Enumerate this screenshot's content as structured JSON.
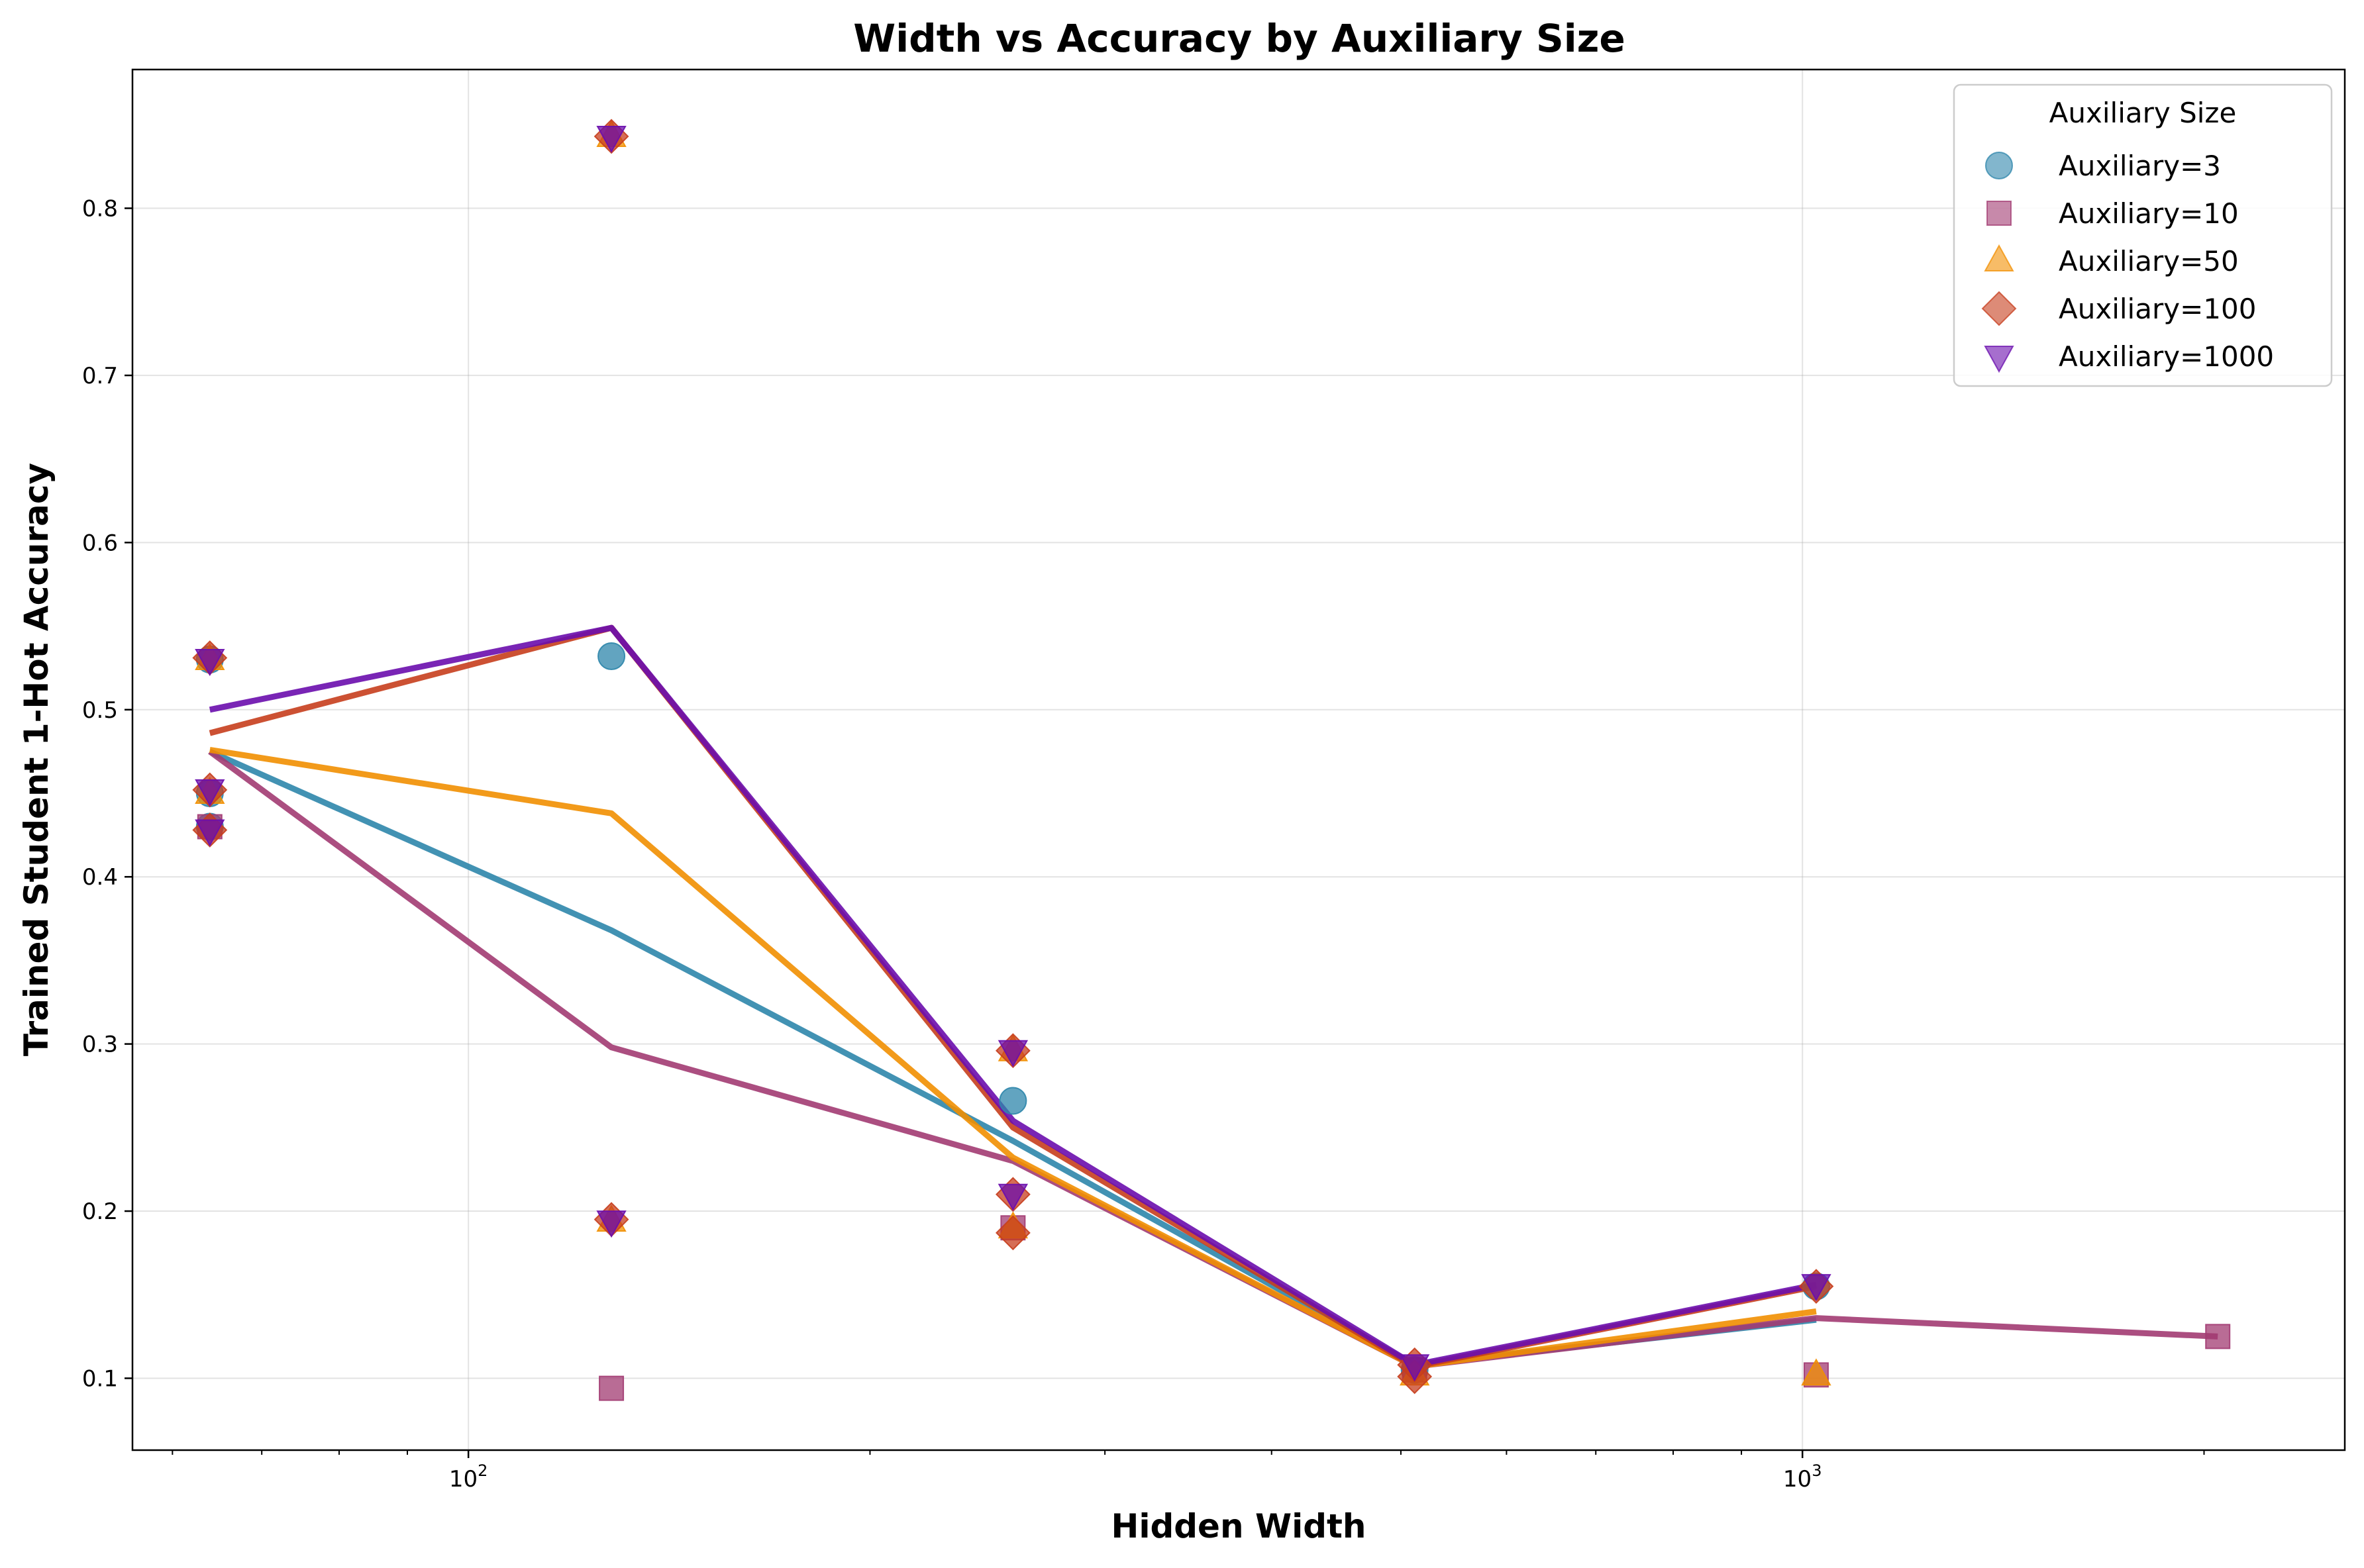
{
  "chart_data": {
    "type": "scatter",
    "title": "Width vs Accuracy by Auxiliary Size",
    "xlabel": "Hidden Width",
    "ylabel": "Trained Student 1-Hot Accuracy",
    "xscale": "log",
    "xlim": [
      56,
      2550
    ],
    "ylim": [
      0.057,
      0.883
    ],
    "grid": true,
    "xticks": [
      {
        "value": 100,
        "label": "10",
        "exp": "2"
      },
      {
        "value": 1000,
        "label": "10",
        "exp": "3"
      }
    ],
    "yticks": [
      0.1,
      0.2,
      0.3,
      0.4,
      0.5,
      0.6,
      0.7,
      0.8
    ],
    "legend": {
      "title": "Auxiliary Size",
      "placement": "top-right"
    },
    "series": [
      {
        "name": "Auxiliary=3",
        "marker": "circle",
        "color": "#2E86AB",
        "points": [
          [
            64,
            0.45
          ],
          [
            64,
            0.43
          ],
          [
            64,
            0.53
          ],
          [
            128,
            0.532
          ],
          [
            256,
            0.266
          ],
          [
            512,
            0.105
          ],
          [
            1024,
            0.155
          ]
        ],
        "line": [
          [
            64,
            0.475
          ],
          [
            128,
            0.368
          ],
          [
            256,
            0.242
          ],
          [
            512,
            0.108
          ],
          [
            1024,
            0.135
          ]
        ]
      },
      {
        "name": "Auxiliary=10",
        "marker": "square",
        "color": "#A23B72",
        "points": [
          [
            64,
            0.43
          ],
          [
            128,
            0.094
          ],
          [
            256,
            0.19
          ],
          [
            512,
            0.105
          ],
          [
            1024,
            0.102
          ],
          [
            2048,
            0.125
          ]
        ],
        "line": [
          [
            64,
            0.475
          ],
          [
            128,
            0.298
          ],
          [
            256,
            0.23
          ],
          [
            512,
            0.107
          ],
          [
            1024,
            0.136
          ],
          [
            2048,
            0.125
          ]
        ]
      },
      {
        "name": "Auxiliary=50",
        "marker": "triangle-up",
        "color": "#F18F01",
        "points": [
          [
            64,
            0.53
          ],
          [
            64,
            0.45
          ],
          [
            128,
            0.843
          ],
          [
            128,
            0.194
          ],
          [
            256,
            0.296
          ],
          [
            256,
            0.19
          ],
          [
            512,
            0.102
          ],
          [
            1024,
            0.102
          ]
        ],
        "line": [
          [
            64,
            0.476
          ],
          [
            128,
            0.438
          ],
          [
            256,
            0.232
          ],
          [
            512,
            0.107
          ],
          [
            1024,
            0.14
          ]
        ]
      },
      {
        "name": "Auxiliary=100",
        "marker": "diamond",
        "color": "#C73E1D",
        "points": [
          [
            64,
            0.531
          ],
          [
            64,
            0.452
          ],
          [
            64,
            0.428
          ],
          [
            128,
            0.843
          ],
          [
            128,
            0.195
          ],
          [
            256,
            0.296
          ],
          [
            256,
            0.21
          ],
          [
            256,
            0.187
          ],
          [
            512,
            0.108
          ],
          [
            512,
            0.101
          ],
          [
            1024,
            0.155
          ]
        ],
        "line": [
          [
            64,
            0.486
          ],
          [
            128,
            0.549
          ],
          [
            256,
            0.25
          ],
          [
            512,
            0.107
          ],
          [
            1024,
            0.155
          ]
        ]
      },
      {
        "name": "Auxiliary=1000",
        "marker": "triangle-down",
        "color": "#6A0DAD",
        "points": [
          [
            64,
            0.53
          ],
          [
            64,
            0.452
          ],
          [
            64,
            0.428
          ],
          [
            128,
            0.843
          ],
          [
            128,
            0.194
          ],
          [
            256,
            0.296
          ],
          [
            256,
            0.21
          ],
          [
            512,
            0.108
          ],
          [
            1024,
            0.156
          ]
        ],
        "line": [
          [
            64,
            0.5
          ],
          [
            128,
            0.549
          ],
          [
            256,
            0.254
          ],
          [
            512,
            0.108
          ],
          [
            1024,
            0.156
          ]
        ]
      }
    ]
  }
}
